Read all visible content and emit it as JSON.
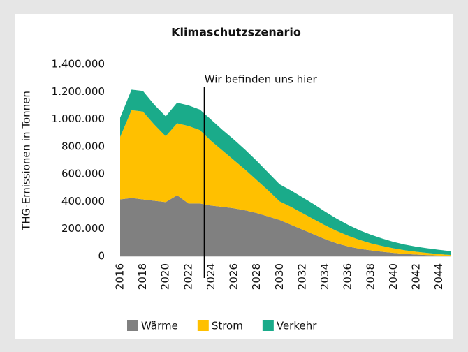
{
  "chart_data": {
    "type": "stacked_area",
    "title": "Klimaschutzszenario",
    "ylabel": "THG-Emissionen in Tonnen",
    "x": [
      2016,
      2017,
      2018,
      2019,
      2020,
      2021,
      2022,
      2023,
      2024,
      2025,
      2026,
      2027,
      2028,
      2029,
      2030,
      2031,
      2032,
      2033,
      2034,
      2035,
      2036,
      2037,
      2038,
      2039,
      2040,
      2041,
      2042,
      2043,
      2044,
      2045
    ],
    "series": [
      {
        "name": "Wärme",
        "color": "#808080",
        "values": [
          415000,
          425000,
          415000,
          405000,
          395000,
          445000,
          385000,
          385000,
          370000,
          360000,
          350000,
          335000,
          315000,
          290000,
          265000,
          230000,
          195000,
          160000,
          125000,
          95000,
          72000,
          55000,
          43000,
          33000,
          25000,
          18000,
          13000,
          9000,
          6000,
          3000
        ]
      },
      {
        "name": "Strom",
        "color": "#ffc000",
        "values": [
          455000,
          640000,
          640000,
          555000,
          480000,
          525000,
          565000,
          535000,
          470000,
          410000,
          350000,
          295000,
          240000,
          190000,
          135000,
          130000,
          120000,
          110000,
          100000,
          90000,
          78000,
          65000,
          52000,
          42000,
          33000,
          26000,
          20000,
          15000,
          10000,
          7000
        ]
      },
      {
        "name": "Verkehr",
        "color": "#1aab8a",
        "values": [
          140000,
          150000,
          150000,
          145000,
          145000,
          150000,
          150000,
          150000,
          155000,
          150000,
          150000,
          145000,
          140000,
          130000,
          125000,
          120000,
          115000,
          110000,
          100000,
          90000,
          80000,
          70000,
          63000,
          55000,
          47000,
          41000,
          37000,
          34000,
          31000,
          28000
        ]
      }
    ],
    "xlim": [
      2016,
      2045
    ],
    "xticks": [
      2016,
      2018,
      2020,
      2022,
      2024,
      2026,
      2028,
      2030,
      2032,
      2034,
      2036,
      2038,
      2040,
      2042,
      2044
    ],
    "ylim": [
      0,
      1400000
    ],
    "yticks": [
      0,
      {
        "value": 200000,
        "label": "200.000"
      },
      {
        "value": 400000,
        "label": "400.000"
      },
      {
        "value": 600000,
        "label": "600.000"
      },
      {
        "value": 800000,
        "label": "800.000"
      },
      {
        "value": 1000000,
        "label": "1.000.000"
      },
      {
        "value": 1200000,
        "label": "1.200.000"
      },
      {
        "value": 1400000,
        "label": "1.400.000"
      }
    ],
    "annotation": {
      "text": "Wir befinden uns hier",
      "x": 2023.4
    },
    "grid": false,
    "legend": "bottom"
  }
}
